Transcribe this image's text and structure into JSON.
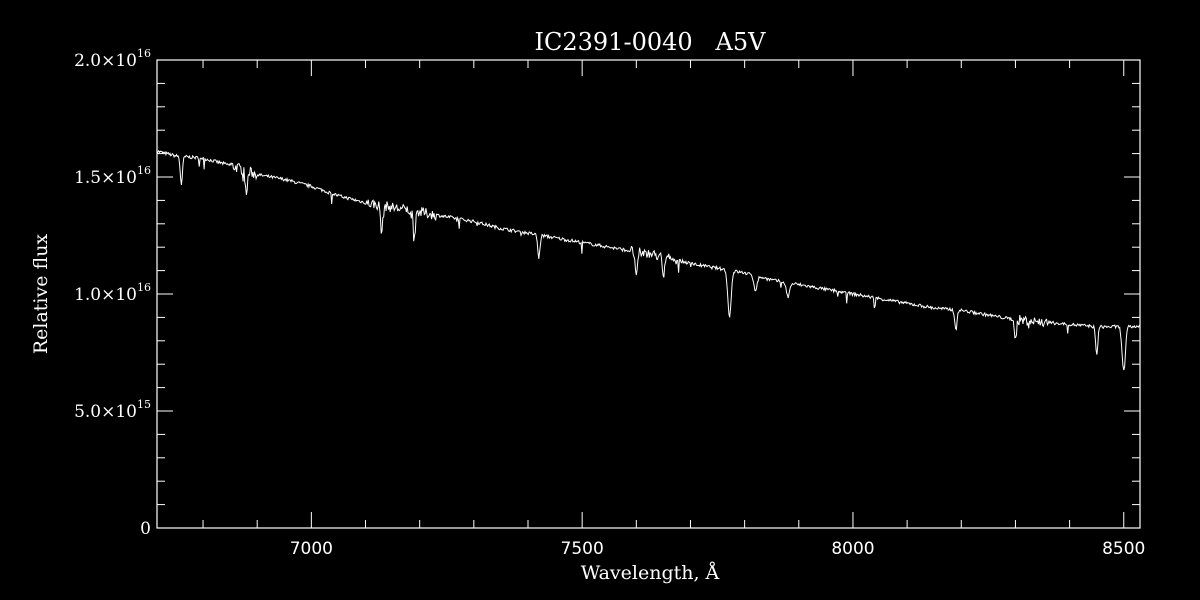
{
  "colors": {
    "background": "#000000",
    "foreground": "#ffffff"
  },
  "chart_data": {
    "type": "line",
    "title": "IC2391-0040   A5V",
    "xlabel": "Wavelength, Å",
    "ylabel": "Relative flux",
    "xlim": [
      6715,
      8530
    ],
    "ylim": [
      0,
      2e+16
    ],
    "grid": false,
    "x_ticks": [
      {
        "value": 7000,
        "label": "7000"
      },
      {
        "value": 7500,
        "label": "7500"
      },
      {
        "value": 8000,
        "label": "8000"
      },
      {
        "value": 8500,
        "label": "8500"
      }
    ],
    "y_ticks": [
      {
        "value": 0,
        "mantissa": "0",
        "exp": ""
      },
      {
        "value": 5000000000000000.0,
        "mantissa": "5.0×10",
        "exp": "15"
      },
      {
        "value": 1e+16,
        "mantissa": "1.0×10",
        "exp": "16"
      },
      {
        "value": 1.5e+16,
        "mantissa": "1.5×10",
        "exp": "16"
      },
      {
        "value": 2e+16,
        "mantissa": "2.0×10",
        "exp": "16"
      }
    ],
    "series": [
      {
        "x": [
          6715,
          6750,
          6800,
          6850,
          6900,
          6950,
          7000,
          7050,
          7100,
          7150,
          7200,
          7250,
          7300,
          7350,
          7400,
          7450,
          7500,
          7550,
          7600,
          7650,
          7700,
          7750,
          7800,
          7850,
          7900,
          7950,
          8000,
          8050,
          8100,
          8150,
          8200,
          8250,
          8300,
          8350,
          8400,
          8450,
          8500,
          8530
        ],
        "values": [
          1.61e+16,
          1.59e+16,
          1.58e+16,
          1.55e+16,
          1.51e+16,
          1.49e+16,
          1.46e+16,
          1.42e+16,
          1.39e+16,
          1.37e+16,
          1.35e+16,
          1.33e+16,
          1.31e+16,
          1.28e+16,
          1.26e+16,
          1.24e+16,
          1.22e+16,
          1.2e+16,
          1.18e+16,
          1.16e+16,
          1.13e+16,
          1.11e+16,
          1.09e+16,
          1.06e+16,
          1.04e+16,
          1.02e+16,
          1e+16,
          9800000000000000.0,
          9600000000000000.0,
          9400000000000000.0,
          9300000000000000.0,
          9100000000000000.0,
          8900000000000000.0,
          8800000000000000.0,
          8700000000000000.0,
          8600000000000000.0,
          8600000000000000.0,
          8600000000000000.0
        ]
      }
    ]
  }
}
